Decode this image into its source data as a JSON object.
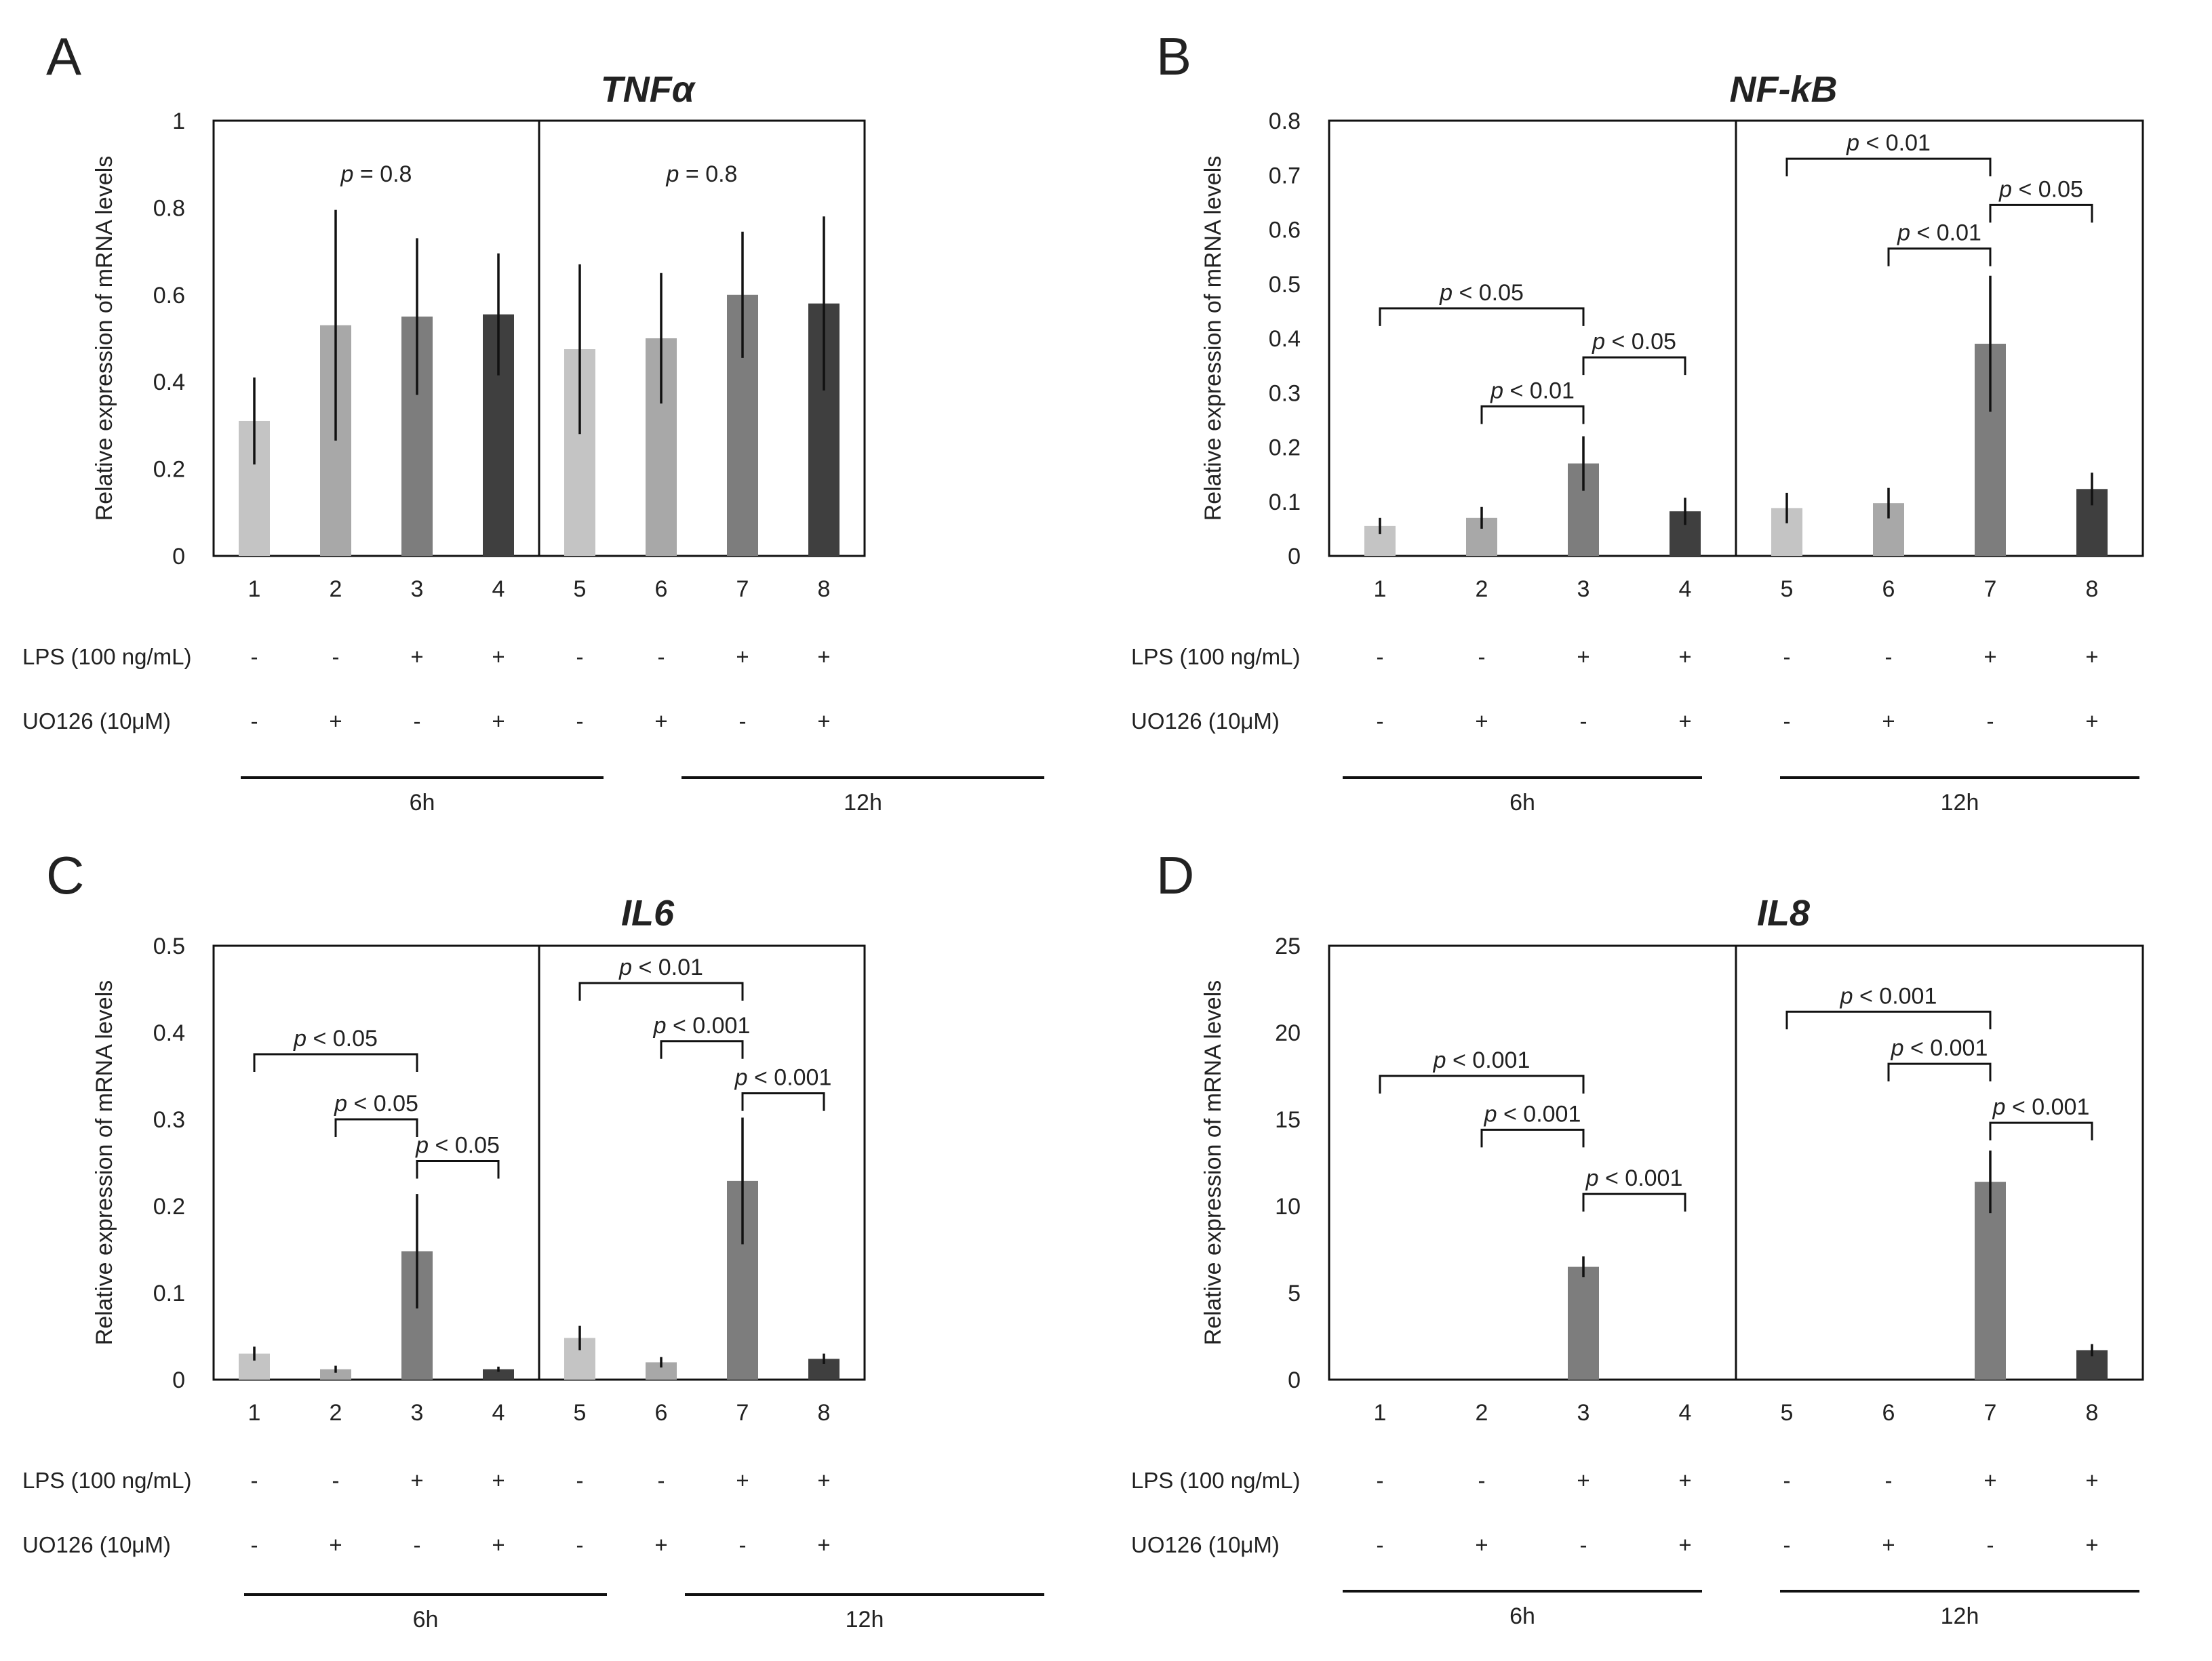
{
  "figure": {
    "row_labels": [
      "LPS (100 ng/mL)",
      "UO126 (10μM)"
    ],
    "lps": [
      "-",
      "-",
      "+",
      "+",
      "-",
      "-",
      "+",
      "+"
    ],
    "uo126": [
      "-",
      "+",
      "-",
      "+",
      "-",
      "+",
      "-",
      "+"
    ],
    "time_groups": [
      "6h",
      "12h"
    ],
    "bar_colors": [
      "#c4c4c4",
      "#a8a8a8",
      "#7d7d7d",
      "#3f3f3f",
      "#c4c4c4",
      "#a8a8a8",
      "#7d7d7d",
      "#3f3f3f"
    ]
  },
  "chart_data": [
    {
      "panel": "A",
      "type": "bar",
      "title": "TNFα",
      "ylabel": "Relative expression of mRNA levels",
      "xlabel": "",
      "categories": [
        "1",
        "2",
        "3",
        "4",
        "5",
        "6",
        "7",
        "8"
      ],
      "values": [
        0.31,
        0.53,
        0.55,
        0.555,
        0.475,
        0.5,
        0.6,
        0.58
      ],
      "errors": [
        0.1,
        0.265,
        0.18,
        0.14,
        0.195,
        0.15,
        0.145,
        0.2
      ],
      "ylim": [
        0,
        1
      ],
      "yticks": [
        "0",
        "0.2",
        "0.4",
        "0.6",
        "0.8",
        "1"
      ],
      "annotations": [
        {
          "italic": "p",
          "text": " = 0.8",
          "group": "6h"
        },
        {
          "italic": "p",
          "text": " = 0.8",
          "group": "12h"
        }
      ]
    },
    {
      "panel": "B",
      "type": "bar",
      "title": "NF-kB",
      "ylabel": "Relative expression of mRNA levels",
      "xlabel": "",
      "categories": [
        "1",
        "2",
        "3",
        "4",
        "5",
        "6",
        "7",
        "8"
      ],
      "values": [
        0.055,
        0.07,
        0.17,
        0.082,
        0.088,
        0.097,
        0.39,
        0.123
      ],
      "errors": [
        0.015,
        0.02,
        0.05,
        0.025,
        0.028,
        0.028,
        0.125,
        0.03
      ],
      "ylim": [
        0,
        0.8
      ],
      "yticks": [
        "0",
        "0.1",
        "0.2",
        "0.3",
        "0.4",
        "0.5",
        "0.6",
        "0.7",
        "0.8"
      ],
      "brackets": [
        {
          "from": 1,
          "to": 3,
          "italic": "p",
          "text": " < 0.05",
          "y": 0.455
        },
        {
          "from": 2,
          "to": 3,
          "italic": "p",
          "text": " < 0.01",
          "y": 0.275
        },
        {
          "from": 3,
          "to": 4,
          "italic": "p",
          "text": " < 0.05",
          "y": 0.365
        },
        {
          "from": 5,
          "to": 7,
          "italic": "p",
          "text": " < 0.01",
          "y": 0.73
        },
        {
          "from": 6,
          "to": 7,
          "italic": "p",
          "text": " < 0.01",
          "y": 0.565
        },
        {
          "from": 7,
          "to": 8,
          "italic": "p",
          "text": " < 0.05",
          "y": 0.645
        }
      ]
    },
    {
      "panel": "C",
      "type": "bar",
      "title": "IL6",
      "ylabel": "Relative expression of mRNA levels",
      "xlabel": "",
      "categories": [
        "1",
        "2",
        "3",
        "4",
        "5",
        "6",
        "7",
        "8"
      ],
      "values": [
        0.03,
        0.012,
        0.148,
        0.012,
        0.048,
        0.02,
        0.229,
        0.024
      ],
      "errors": [
        0.008,
        0.004,
        0.066,
        0.003,
        0.014,
        0.006,
        0.073,
        0.006
      ],
      "ylim": [
        0,
        0.5
      ],
      "yticks": [
        "0",
        "0.1",
        "0.2",
        "0.3",
        "0.4",
        "0.5"
      ],
      "brackets": [
        {
          "from": 1,
          "to": 3,
          "italic": "p",
          "text": " < 0.05",
          "y": 0.375
        },
        {
          "from": 2,
          "to": 3,
          "italic": "p",
          "text": " < 0.05",
          "y": 0.3
        },
        {
          "from": 3,
          "to": 4,
          "italic": "p",
          "text": " < 0.05",
          "y": 0.252
        },
        {
          "from": 5,
          "to": 7,
          "italic": "p",
          "text": " < 0.01",
          "y": 0.457
        },
        {
          "from": 6,
          "to": 7,
          "italic": "p",
          "text": " < 0.001",
          "y": 0.39
        },
        {
          "from": 7,
          "to": 8,
          "italic": "p",
          "text": " < 0.001",
          "y": 0.33
        }
      ]
    },
    {
      "panel": "D",
      "type": "bar",
      "title": "IL8",
      "ylabel": "Relative expression of mRNA levels",
      "xlabel": "",
      "categories": [
        "1",
        "2",
        "3",
        "4",
        "5",
        "6",
        "7",
        "8"
      ],
      "values": [
        0,
        0,
        6.5,
        0,
        0,
        0,
        11.4,
        1.7
      ],
      "errors": [
        0,
        0,
        0.6,
        0,
        0,
        0,
        1.8,
        0.35
      ],
      "ylim": [
        0,
        25
      ],
      "yticks": [
        "0",
        "5",
        "10",
        "15",
        "20",
        "25"
      ],
      "brackets": [
        {
          "from": 1,
          "to": 3,
          "italic": "p",
          "text": " < 0.001",
          "y": 17.5
        },
        {
          "from": 2,
          "to": 3,
          "italic": "p",
          "text": " < 0.001",
          "y": 14.4
        },
        {
          "from": 3,
          "to": 4,
          "italic": "p",
          "text": " < 0.001",
          "y": 10.7
        },
        {
          "from": 5,
          "to": 7,
          "italic": "p",
          "text": " < 0.001",
          "y": 21.2
        },
        {
          "from": 6,
          "to": 7,
          "italic": "p",
          "text": " < 0.001",
          "y": 18.2
        },
        {
          "from": 7,
          "to": 8,
          "italic": "p",
          "text": " < 0.001",
          "y": 14.8
        }
      ]
    }
  ]
}
